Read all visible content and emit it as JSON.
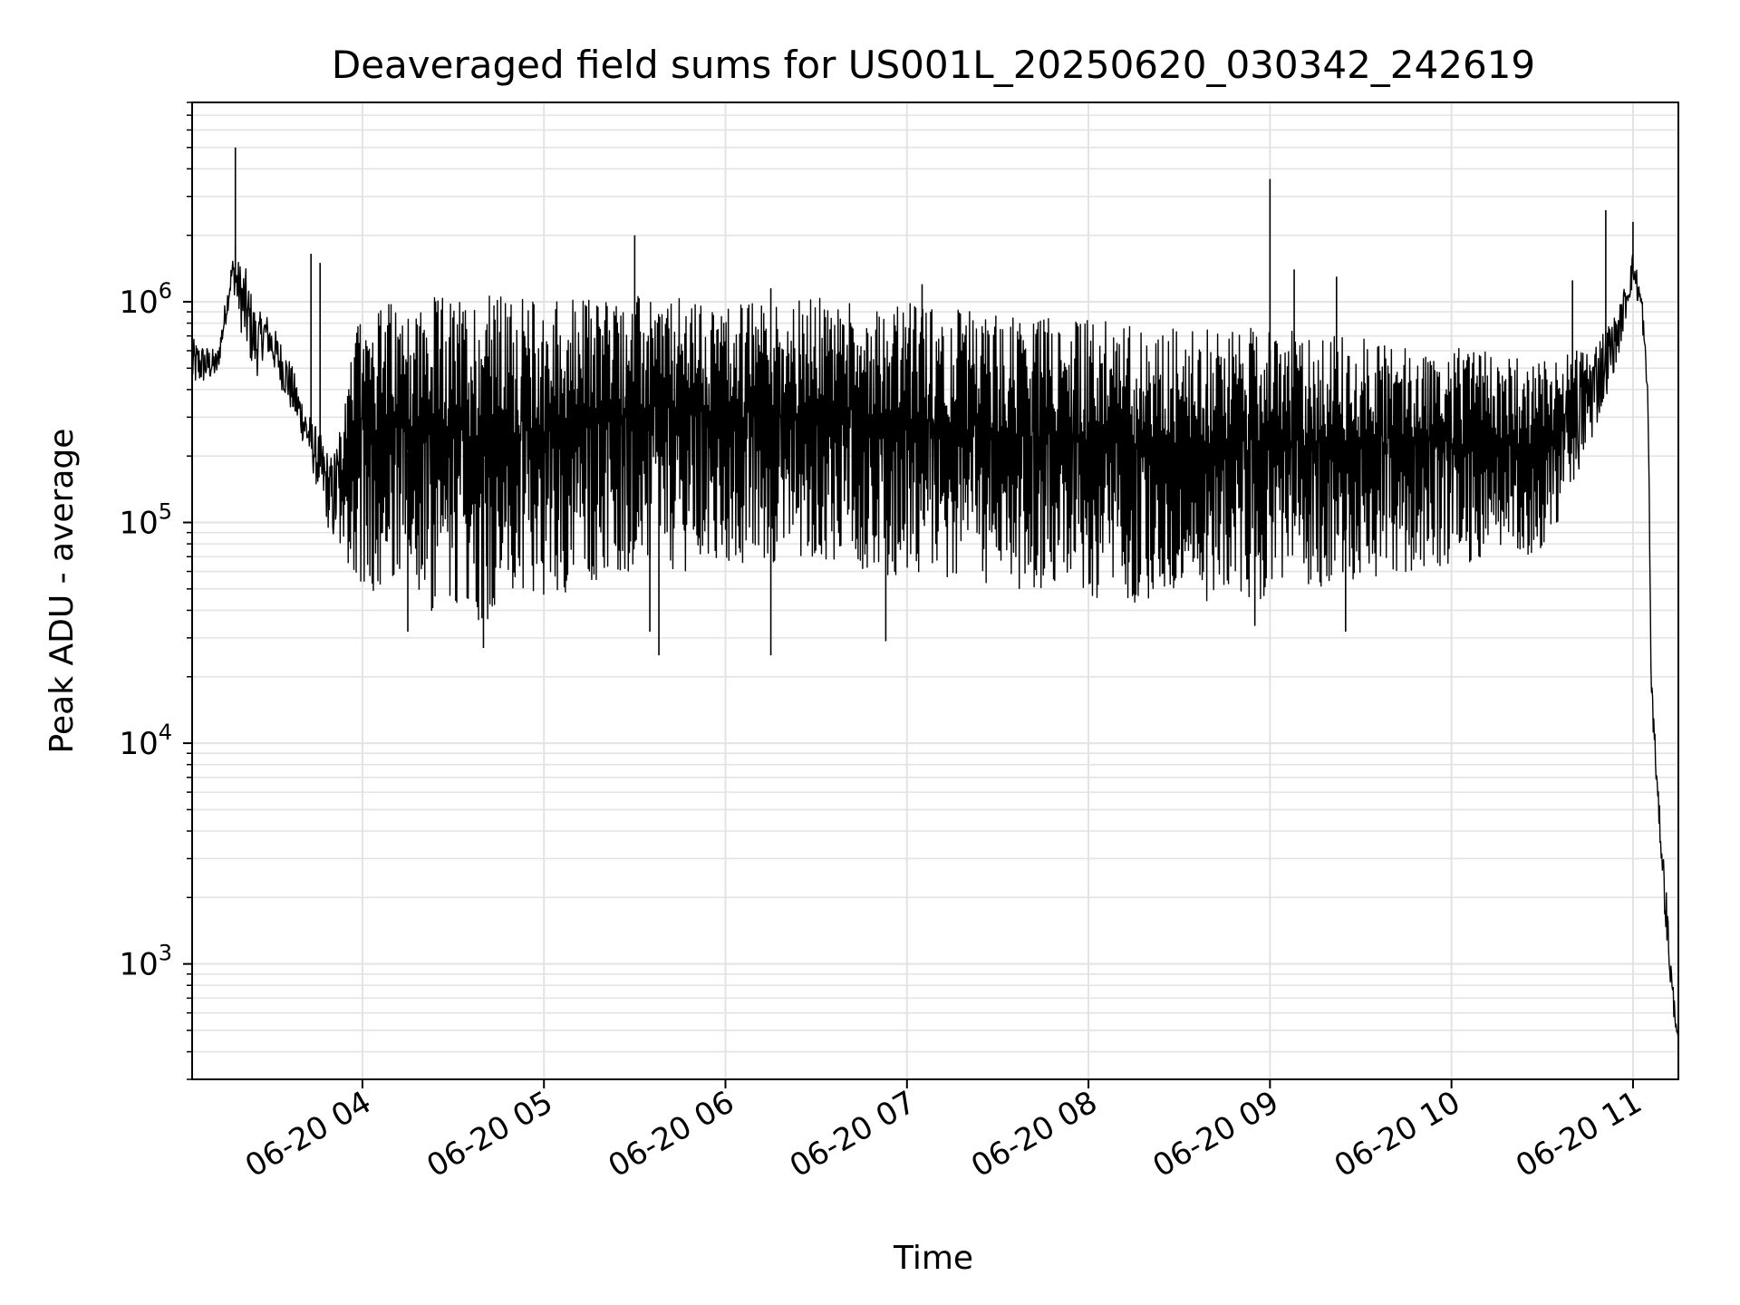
{
  "chart_data": {
    "type": "line",
    "title": "Deaveraged field sums for US001L_20250620_030342_242619",
    "xlabel": "Time",
    "ylabel": "Peak ADU - average",
    "yscale": "log",
    "ylim": [
      300,
      8000000
    ],
    "xlim": [
      "2025-06-20 03:03:42",
      "2025-06-20 11:15:00"
    ],
    "grid": true,
    "line_color": "#000000",
    "grid_color": "#e3e3e3",
    "x_ticks": [
      {
        "value": "2025-06-20 04:00",
        "label": "06-20 04"
      },
      {
        "value": "2025-06-20 05:00",
        "label": "06-20 05"
      },
      {
        "value": "2025-06-20 06:00",
        "label": "06-20 06"
      },
      {
        "value": "2025-06-20 07:00",
        "label": "06-20 07"
      },
      {
        "value": "2025-06-20 08:00",
        "label": "06-20 08"
      },
      {
        "value": "2025-06-20 09:00",
        "label": "06-20 09"
      },
      {
        "value": "2025-06-20 10:00",
        "label": "06-20 10"
      },
      {
        "value": "2025-06-20 11:00",
        "label": "06-20 11"
      }
    ],
    "y_ticks": [
      {
        "value": 1000,
        "base": "10",
        "exp": "3"
      },
      {
        "value": 10000,
        "base": "10",
        "exp": "4"
      },
      {
        "value": 100000,
        "base": "10",
        "exp": "5"
      },
      {
        "value": 1000000,
        "base": "10",
        "exp": "6"
      }
    ],
    "series": [
      {
        "envelope": [
          [
            "2025-06-20 03:04",
            400000,
            680000
          ],
          [
            "2025-06-20 03:12",
            450000,
            600000
          ],
          [
            "2025-06-20 03:17",
            1200000,
            1600000
          ],
          [
            "2025-06-20 03:21",
            600000,
            1500000
          ],
          [
            "2025-06-20 03:25",
            450000,
            900000
          ],
          [
            "2025-06-20 03:28",
            600000,
            900000
          ],
          [
            "2025-06-20 03:35",
            350000,
            600000
          ],
          [
            "2025-06-20 03:42",
            200000,
            320000
          ],
          [
            "2025-06-20 03:50",
            80000,
            200000
          ],
          [
            "2025-06-20 04:00",
            50000,
            1000000
          ],
          [
            "2025-06-20 04:20",
            40000,
            1050000
          ],
          [
            "2025-06-20 04:40",
            35000,
            1100000
          ],
          [
            "2025-06-20 05:00",
            45000,
            1050000
          ],
          [
            "2025-06-20 05:30",
            60000,
            1080000
          ],
          [
            "2025-06-20 06:00",
            60000,
            1000000
          ],
          [
            "2025-06-20 06:30",
            70000,
            1050000
          ],
          [
            "2025-06-20 07:00",
            55000,
            1000000
          ],
          [
            "2025-06-20 07:30",
            50000,
            900000
          ],
          [
            "2025-06-20 08:00",
            45000,
            850000
          ],
          [
            "2025-06-20 08:30",
            42000,
            800000
          ],
          [
            "2025-06-20 09:00",
            45000,
            750000
          ],
          [
            "2025-06-20 09:30",
            55000,
            700000
          ],
          [
            "2025-06-20 10:00",
            65000,
            620000
          ],
          [
            "2025-06-20 10:30",
            70000,
            550000
          ],
          [
            "2025-06-20 10:45",
            200000,
            650000
          ],
          [
            "2025-06-20 10:55",
            550000,
            900000
          ],
          [
            "2025-06-20 11:00",
            1200000,
            1700000
          ],
          [
            "2025-06-20 11:03",
            800000,
            1100000
          ],
          [
            "2025-06-20 11:05",
            300000,
            400000
          ],
          [
            "2025-06-20 11:06",
            15000,
            25000
          ],
          [
            "2025-06-20 11:08",
            5500,
            7000
          ],
          [
            "2025-06-20 11:11",
            1300,
            2200
          ],
          [
            "2025-06-20 11:13",
            600,
            900
          ],
          [
            "2025-06-20 11:15",
            450,
            450
          ]
        ],
        "spikes": [
          [
            "2025-06-20 03:18",
            5000000
          ],
          [
            "2025-06-20 03:18",
            1800000
          ],
          [
            "2025-06-20 03:43",
            1650000
          ],
          [
            "2025-06-20 03:46",
            1500000
          ],
          [
            "2025-06-20 05:30",
            2000000
          ],
          [
            "2025-06-20 09:00",
            3600000
          ],
          [
            "2025-06-20 10:51",
            2600000
          ],
          [
            "2025-06-20 11:00",
            2300000
          ],
          [
            "2025-06-20 06:15",
            1150000
          ],
          [
            "2025-06-20 07:05",
            1200000
          ],
          [
            "2025-06-20 09:08",
            1400000
          ],
          [
            "2025-06-20 09:22",
            1300000
          ],
          [
            "2025-06-20 10:40",
            1250000
          ]
        ],
        "dips": [
          [
            "2025-06-20 04:40",
            27000
          ],
          [
            "2025-06-20 05:38",
            25000
          ],
          [
            "2025-06-20 06:15",
            25000
          ],
          [
            "2025-06-20 06:53",
            29000
          ],
          [
            "2025-06-20 04:15",
            32000
          ],
          [
            "2025-06-20 05:35",
            32000
          ],
          [
            "2025-06-20 08:55",
            34000
          ],
          [
            "2025-06-20 09:25",
            32000
          ]
        ]
      }
    ]
  }
}
